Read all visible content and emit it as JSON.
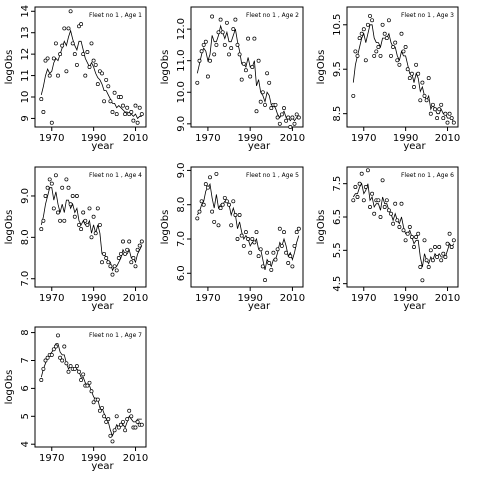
{
  "chart_data": [
    {
      "type": "line",
      "title": "Fleet no 1 , Age 1",
      "xlabel": "year",
      "ylabel": "logObs",
      "xlim": [
        1962,
        2015
      ],
      "ylim": [
        8.6,
        14.2
      ],
      "x_ticks": [
        1970,
        1990,
        2010
      ],
      "y_ticks": [
        9,
        10,
        11,
        12,
        13,
        14
      ],
      "x": [
        1965,
        1966,
        1967,
        1968,
        1969,
        1970,
        1971,
        1972,
        1973,
        1974,
        1975,
        1976,
        1977,
        1978,
        1979,
        1980,
        1981,
        1982,
        1983,
        1984,
        1985,
        1986,
        1987,
        1988,
        1989,
        1990,
        1991,
        1992,
        1993,
        1994,
        1995,
        1996,
        1997,
        1998,
        1999,
        2000,
        2001,
        2002,
        2003,
        2004,
        2005,
        2006,
        2007,
        2008,
        2009,
        2010,
        2011,
        2012,
        2013
      ],
      "points": [
        9.9,
        9.3,
        11.7,
        11.8,
        11.0,
        8.8,
        11.8,
        12.5,
        11.0,
        12.0,
        12.4,
        13.2,
        11.2,
        13.2,
        14.0,
        12.5,
        12.0,
        11.5,
        13.3,
        13.4,
        12.0,
        11.0,
        12.1,
        11.4,
        12.5,
        11.7,
        11.5,
        10.6,
        11.2,
        11.1,
        9.8,
        10.8,
        10.5,
        9.8,
        9.3,
        10.2,
        9.2,
        10.0,
        10.0,
        9.6,
        9.2,
        9.5,
        9.2,
        9.3,
        8.9,
        9.6,
        8.8,
        9.5,
        9.2
      ],
      "fitted": [
        10.1,
        10.5,
        11.0,
        11.3,
        11.1,
        11.2,
        11.6,
        11.8,
        11.7,
        12.0,
        12.3,
        12.6,
        12.4,
        12.8,
        13.1,
        12.7,
        12.4,
        12.2,
        12.6,
        12.6,
        12.2,
        11.8,
        11.6,
        11.4,
        11.6,
        11.4,
        11.1,
        10.9,
        10.8,
        10.6,
        10.3,
        10.3,
        10.1,
        9.9,
        9.7,
        9.7,
        9.5,
        9.6,
        9.5,
        9.4,
        9.3,
        9.3,
        9.2,
        9.2,
        9.1,
        9.2,
        9.0,
        9.1,
        9.1
      ]
    },
    {
      "type": "line",
      "title": "Fleet no 1 , Age 2",
      "xlabel": "year",
      "ylabel": "logObs",
      "xlim": [
        1962,
        2015
      ],
      "ylim": [
        8.9,
        12.7
      ],
      "x_ticks": [
        1970,
        1990,
        2010
      ],
      "y_ticks": [
        9.0,
        10.0,
        11.0,
        12.0
      ],
      "x": [
        1965,
        1966,
        1967,
        1968,
        1969,
        1970,
        1971,
        1972,
        1973,
        1974,
        1975,
        1976,
        1977,
        1978,
        1979,
        1980,
        1981,
        1982,
        1983,
        1984,
        1985,
        1986,
        1987,
        1988,
        1989,
        1990,
        1991,
        1992,
        1993,
        1994,
        1995,
        1996,
        1997,
        1998,
        1999,
        2000,
        2001,
        2002,
        2003,
        2004,
        2005,
        2006,
        2007,
        2008,
        2009,
        2010,
        2011,
        2012,
        2013
      ],
      "points": [
        10.3,
        11.0,
        11.3,
        11.5,
        11.6,
        10.5,
        11.0,
        12.4,
        11.2,
        11.5,
        11.9,
        12.3,
        11.9,
        11.5,
        12.2,
        11.2,
        11.4,
        12.0,
        12.3,
        11.5,
        11.2,
        10.4,
        10.9,
        10.7,
        11.7,
        10.5,
        10.8,
        11.7,
        9.4,
        11.0,
        9.7,
        10.0,
        9.6,
        10.6,
        10.3,
        9.5,
        9.6,
        9.6,
        9.2,
        9.0,
        9.3,
        9.5,
        9.1,
        9.2,
        8.9,
        9.2,
        9.0,
        9.3,
        9.2
      ],
      "fitted": [
        10.6,
        10.9,
        11.2,
        11.4,
        11.3,
        11.0,
        11.2,
        11.8,
        11.6,
        11.6,
        11.8,
        12.1,
        11.9,
        11.7,
        11.9,
        11.6,
        11.6,
        11.8,
        12.0,
        11.6,
        11.3,
        10.9,
        10.9,
        10.8,
        11.1,
        10.8,
        10.8,
        11.0,
        10.2,
        10.4,
        10.0,
        9.9,
        9.7,
        10.0,
        9.9,
        9.6,
        9.6,
        9.5,
        9.3,
        9.2,
        9.3,
        9.4,
        9.2,
        9.2,
        9.1,
        9.2,
        9.1,
        9.2,
        9.2
      ]
    },
    {
      "type": "line",
      "title": "Fleet no 1 , Age 3",
      "xlabel": "year",
      "ylabel": "logObs",
      "xlim": [
        1962,
        2015
      ],
      "ylim": [
        8.2,
        10.9
      ],
      "x_ticks": [
        1970,
        1990,
        2010
      ],
      "y_ticks": [
        8.5,
        9.5,
        10.5
      ],
      "x": [
        1965,
        1966,
        1967,
        1968,
        1969,
        1970,
        1971,
        1972,
        1973,
        1974,
        1975,
        1976,
        1977,
        1978,
        1979,
        1980,
        1981,
        1982,
        1983,
        1984,
        1985,
        1986,
        1987,
        1988,
        1989,
        1990,
        1991,
        1992,
        1993,
        1994,
        1995,
        1996,
        1997,
        1998,
        1999,
        2000,
        2001,
        2002,
        2003,
        2004,
        2005,
        2006,
        2007,
        2008,
        2009,
        2010,
        2011,
        2012,
        2013
      ],
      "points": [
        8.9,
        9.9,
        9.8,
        10.2,
        10.3,
        10.4,
        9.7,
        10.5,
        10.7,
        10.6,
        9.8,
        9.9,
        10.0,
        9.8,
        10.5,
        10.3,
        10.2,
        10.6,
        9.8,
        10.0,
        10.1,
        9.7,
        9.6,
        10.3,
        9.9,
        10.0,
        9.5,
        9.3,
        9.4,
        9.1,
        9.6,
        9.4,
        8.8,
        9.2,
        8.9,
        8.8,
        9.3,
        8.5,
        8.7,
        8.6,
        8.4,
        8.6,
        8.7,
        8.4,
        8.5,
        8.3,
        8.5,
        8.4,
        8.3
      ],
      "fitted": [
        9.2,
        9.6,
        9.8,
        10.0,
        10.2,
        10.3,
        10.1,
        10.3,
        10.5,
        10.5,
        10.2,
        10.1,
        10.1,
        10.0,
        10.2,
        10.2,
        10.2,
        10.3,
        10.1,
        10.0,
        10.0,
        9.8,
        9.7,
        9.9,
        9.8,
        9.8,
        9.6,
        9.4,
        9.4,
        9.2,
        9.4,
        9.3,
        9.0,
        9.1,
        8.9,
        8.8,
        8.9,
        8.6,
        8.7,
        8.6,
        8.5,
        8.5,
        8.6,
        8.5,
        8.5,
        8.4,
        8.4,
        8.4,
        8.3
      ]
    },
    {
      "type": "line",
      "title": "Fleet no 1 , Age 4",
      "xlabel": "year",
      "ylabel": "logObs",
      "xlim": [
        1962,
        2015
      ],
      "ylim": [
        6.8,
        9.7
      ],
      "x_ticks": [
        1970,
        1990,
        2010
      ],
      "y_ticks": [
        7.0,
        8.0,
        9.0
      ],
      "x": [
        1965,
        1966,
        1967,
        1968,
        1969,
        1970,
        1971,
        1972,
        1973,
        1974,
        1975,
        1976,
        1977,
        1978,
        1979,
        1980,
        1981,
        1982,
        1983,
        1984,
        1985,
        1986,
        1987,
        1988,
        1989,
        1990,
        1991,
        1992,
        1993,
        1994,
        1995,
        1996,
        1997,
        1998,
        1999,
        2000,
        2001,
        2002,
        2003,
        2004,
        2005,
        2006,
        2007,
        2008,
        2009,
        2010,
        2011,
        2012,
        2013
      ],
      "points": [
        8.2,
        8.4,
        9.0,
        9.2,
        9.4,
        9.3,
        8.7,
        9.5,
        8.6,
        8.4,
        9.2,
        8.4,
        9.4,
        9.2,
        8.8,
        9.0,
        8.5,
        9.0,
        8.3,
        8.2,
        8.6,
        8.4,
        8.3,
        8.7,
        8.0,
        8.5,
        8.1,
        8.7,
        8.3,
        7.4,
        7.6,
        7.5,
        7.4,
        7.3,
        7.1,
        7.3,
        7.2,
        7.5,
        7.6,
        7.9,
        7.6,
        7.7,
        7.9,
        7.4,
        7.5,
        7.3,
        7.7,
        7.8,
        7.9
      ],
      "fitted": [
        8.3,
        8.5,
        8.8,
        9.0,
        9.2,
        9.2,
        8.9,
        9.1,
        8.8,
        8.6,
        8.8,
        8.6,
        8.9,
        8.9,
        8.7,
        8.8,
        8.6,
        8.7,
        8.4,
        8.3,
        8.4,
        8.3,
        8.3,
        8.4,
        8.1,
        8.3,
        8.1,
        8.3,
        8.1,
        7.6,
        7.6,
        7.5,
        7.4,
        7.4,
        7.2,
        7.3,
        7.3,
        7.4,
        7.5,
        7.7,
        7.6,
        7.6,
        7.7,
        7.5,
        7.5,
        7.4,
        7.6,
        7.7,
        7.8
      ]
    },
    {
      "type": "line",
      "title": "Fleet no 1 , Age 5",
      "xlabel": "year",
      "ylabel": "logObs",
      "xlim": [
        1962,
        2015
      ],
      "ylim": [
        5.6,
        9.1
      ],
      "x_ticks": [
        1970,
        1990,
        2010
      ],
      "y_ticks": [
        6.0,
        7.0,
        8.0,
        9.0
      ],
      "x": [
        1965,
        1966,
        1967,
        1968,
        1969,
        1970,
        1971,
        1972,
        1973,
        1974,
        1975,
        1976,
        1977,
        1978,
        1979,
        1980,
        1981,
        1982,
        1983,
        1984,
        1985,
        1986,
        1987,
        1988,
        1989,
        1990,
        1991,
        1992,
        1993,
        1994,
        1995,
        1996,
        1997,
        1998,
        1999,
        2000,
        2001,
        2002,
        2003,
        2004,
        2005,
        2006,
        2007,
        2008,
        2009,
        2010,
        2011,
        2012,
        2013
      ],
      "points": [
        7.6,
        7.8,
        8.1,
        8.0,
        8.6,
        8.5,
        8.8,
        7.8,
        7.5,
        8.9,
        7.4,
        7.9,
        8.0,
        8.2,
        8.1,
        8.0,
        7.4,
        8.1,
        7.7,
        7.0,
        7.7,
        7.1,
        6.8,
        7.2,
        7.0,
        6.6,
        7.0,
        6.9,
        7.2,
        6.5,
        6.7,
        6.2,
        5.8,
        6.6,
        6.3,
        6.1,
        6.6,
        6.4,
        6.7,
        7.3,
        6.8,
        7.2,
        6.6,
        6.3,
        6.5,
        6.2,
        6.8,
        7.2,
        7.3
      ],
      "fitted": [
        7.7,
        7.8,
        8.0,
        8.1,
        8.4,
        8.5,
        8.6,
        8.2,
        7.9,
        8.3,
        7.9,
        8.0,
        8.0,
        8.1,
        8.1,
        8.0,
        7.7,
        7.9,
        7.7,
        7.3,
        7.5,
        7.2,
        7.0,
        7.1,
        7.0,
        6.8,
        6.9,
        6.9,
        7.0,
        6.7,
        6.7,
        6.4,
        6.1,
        6.4,
        6.3,
        6.2,
        6.4,
        6.4,
        6.6,
        6.9,
        6.8,
        7.0,
        6.8,
        6.5,
        6.6,
        6.4,
        6.6,
        6.9,
        7.1
      ]
    },
    {
      "type": "line",
      "title": "Fleet no 1 , Age 6",
      "xlabel": "year",
      "ylabel": "logObs",
      "xlim": [
        1962,
        2015
      ],
      "ylim": [
        4.4,
        8.0
      ],
      "x_ticks": [
        1970,
        1990,
        2010
      ],
      "y_ticks": [
        4.5,
        5.5,
        6.5,
        7.5
      ],
      "x": [
        1965,
        1966,
        1967,
        1968,
        1969,
        1970,
        1971,
        1972,
        1973,
        1974,
        1975,
        1976,
        1977,
        1978,
        1979,
        1980,
        1981,
        1982,
        1983,
        1984,
        1985,
        1986,
        1987,
        1988,
        1989,
        1990,
        1991,
        1992,
        1993,
        1994,
        1995,
        1996,
        1997,
        1998,
        1999,
        2000,
        2001,
        2002,
        2003,
        2004,
        2005,
        2006,
        2007,
        2008,
        2009,
        2010,
        2011,
        2012,
        2013
      ],
      "points": [
        7.0,
        7.4,
        7.1,
        7.5,
        7.8,
        7.0,
        7.4,
        7.9,
        6.8,
        7.2,
        6.6,
        7.0,
        7.0,
        6.5,
        7.6,
        6.8,
        7.0,
        6.7,
        6.6,
        6.3,
        6.9,
        6.4,
        6.2,
        6.9,
        6.1,
        5.8,
        6.0,
        6.2,
        5.9,
        5.6,
        5.9,
        6.0,
        5.0,
        4.6,
        5.8,
        5.2,
        5.0,
        5.5,
        5.2,
        5.6,
        5.3,
        5.6,
        5.2,
        5.4,
        5.3,
        5.7,
        6.0,
        5.6,
        5.8
      ],
      "fitted": [
        7.1,
        7.2,
        7.2,
        7.4,
        7.5,
        7.2,
        7.3,
        7.5,
        7.0,
        7.1,
        6.8,
        6.9,
        6.9,
        6.7,
        7.1,
        6.9,
        6.9,
        6.7,
        6.6,
        6.4,
        6.6,
        6.4,
        6.3,
        6.5,
        6.2,
        6.0,
        6.0,
        6.1,
        5.9,
        5.7,
        5.8,
        5.8,
        5.3,
        5.0,
        5.4,
        5.2,
        5.1,
        5.3,
        5.2,
        5.4,
        5.3,
        5.4,
        5.3,
        5.3,
        5.3,
        5.5,
        5.7,
        5.6,
        5.7
      ]
    },
    {
      "type": "line",
      "title": "Fleet no 1 , Age 7",
      "xlabel": "year",
      "ylabel": "logObs",
      "xlim": [
        1962,
        2015
      ],
      "ylim": [
        3.9,
        8.2
      ],
      "x_ticks": [
        1970,
        1990,
        2010
      ],
      "y_ticks": [
        4,
        5,
        6,
        7,
        8
      ],
      "x": [
        1965,
        1966,
        1967,
        1968,
        1969,
        1970,
        1971,
        1972,
        1973,
        1974,
        1975,
        1976,
        1977,
        1978,
        1979,
        1980,
        1981,
        1982,
        1983,
        1984,
        1985,
        1986,
        1987,
        1988,
        1989,
        1990,
        1991,
        1992,
        1993,
        1994,
        1995,
        1996,
        1997,
        1998,
        1999,
        2000,
        2001,
        2002,
        2003,
        2004,
        2005,
        2006,
        2007,
        2008,
        2009,
        2010,
        2011,
        2012,
        2013
      ],
      "points": [
        6.3,
        6.7,
        7.0,
        7.1,
        7.2,
        7.2,
        7.4,
        7.5,
        7.9,
        7.1,
        7.0,
        7.5,
        6.9,
        6.6,
        6.8,
        6.7,
        6.7,
        6.8,
        6.6,
        6.3,
        6.5,
        6.1,
        6.1,
        6.2,
        5.9,
        5.5,
        5.6,
        5.6,
        5.2,
        5.3,
        5.0,
        4.8,
        4.9,
        4.3,
        4.1,
        4.5,
        5.0,
        4.6,
        4.7,
        4.8,
        4.5,
        4.9,
        5.2,
        5.0,
        4.6,
        4.6,
        4.8,
        4.7,
        4.7
      ],
      "fitted": [
        6.4,
        6.7,
        6.9,
        7.1,
        7.2,
        7.3,
        7.4,
        7.6,
        7.6,
        7.3,
        7.2,
        7.2,
        6.9,
        6.7,
        6.8,
        6.7,
        6.7,
        6.7,
        6.6,
        6.4,
        6.4,
        6.2,
        6.1,
        6.1,
        5.9,
        5.7,
        5.6,
        5.6,
        5.3,
        5.3,
        5.1,
        4.9,
        4.8,
        4.5,
        4.3,
        4.5,
        4.7,
        4.6,
        4.7,
        4.7,
        4.6,
        4.8,
        5.0,
        4.9,
        4.8,
        4.8,
        4.9,
        4.9,
        4.9
      ]
    }
  ]
}
